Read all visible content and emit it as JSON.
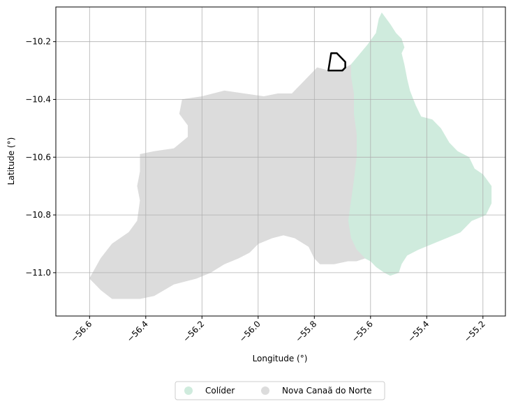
{
  "chart_data": {
    "type": "map",
    "xlabel": "Longitude (°)",
    "ylabel": "Latitude (°)",
    "xlim": [
      -56.72,
      -55.12
    ],
    "ylim": [
      -11.15,
      -10.08
    ],
    "xticks": [
      -56.6,
      -56.4,
      -56.2,
      -56.0,
      -55.8,
      -55.6,
      -55.4,
      -55.2
    ],
    "xtick_labels": [
      "−56.6",
      "−56.4",
      "−56.2",
      "−56.0",
      "−55.8",
      "−55.6",
      "−55.4",
      "−55.2"
    ],
    "yticks": [
      -10.2,
      -10.4,
      -10.6,
      -10.8,
      -11.0
    ],
    "ytick_labels": [
      "−10.2",
      "−10.4",
      "−10.6",
      "−10.8",
      "−11.0"
    ],
    "grid": true,
    "legend_position": "bottom-center",
    "regions": [
      {
        "name": "Colíder",
        "color": "#cfebdd",
        "outline": [
          [
            -55.67,
            -10.28
          ],
          [
            -55.61,
            -10.21
          ],
          [
            -55.58,
            -10.17
          ],
          [
            -55.57,
            -10.12
          ],
          [
            -55.56,
            -10.1
          ],
          [
            -55.53,
            -10.14
          ],
          [
            -55.51,
            -10.17
          ],
          [
            -55.49,
            -10.19
          ],
          [
            -55.48,
            -10.22
          ],
          [
            -55.49,
            -10.24
          ],
          [
            -55.48,
            -10.28
          ],
          [
            -55.47,
            -10.33
          ],
          [
            -55.46,
            -10.37
          ],
          [
            -55.44,
            -10.42
          ],
          [
            -55.42,
            -10.46
          ],
          [
            -55.38,
            -10.47
          ],
          [
            -55.35,
            -10.5
          ],
          [
            -55.32,
            -10.55
          ],
          [
            -55.29,
            -10.58
          ],
          [
            -55.25,
            -10.6
          ],
          [
            -55.23,
            -10.64
          ],
          [
            -55.2,
            -10.66
          ],
          [
            -55.17,
            -10.7
          ],
          [
            -55.17,
            -10.76
          ],
          [
            -55.19,
            -10.8
          ],
          [
            -55.24,
            -10.82
          ],
          [
            -55.28,
            -10.86
          ],
          [
            -55.33,
            -10.88
          ],
          [
            -55.38,
            -10.9
          ],
          [
            -55.43,
            -10.92
          ],
          [
            -55.47,
            -10.94
          ],
          [
            -55.49,
            -10.97
          ],
          [
            -55.5,
            -11.0
          ],
          [
            -55.53,
            -11.01
          ],
          [
            -55.55,
            -11.0
          ],
          [
            -55.58,
            -10.98
          ],
          [
            -55.6,
            -10.96
          ],
          [
            -55.62,
            -10.95
          ],
          [
            -55.65,
            -10.92
          ],
          [
            -55.67,
            -10.88
          ],
          [
            -55.68,
            -10.82
          ],
          [
            -55.67,
            -10.75
          ],
          [
            -55.66,
            -10.68
          ],
          [
            -55.65,
            -10.6
          ],
          [
            -55.65,
            -10.52
          ],
          [
            -55.66,
            -10.45
          ],
          [
            -55.66,
            -10.38
          ],
          [
            -55.67,
            -10.32
          ]
        ]
      },
      {
        "name": "Nova Canaã do Norte",
        "color": "#dcdcdc",
        "outline": [
          [
            -55.67,
            -10.28
          ],
          [
            -55.71,
            -10.3
          ],
          [
            -55.75,
            -10.3
          ],
          [
            -55.79,
            -10.29
          ],
          [
            -55.82,
            -10.32
          ],
          [
            -55.85,
            -10.35
          ],
          [
            -55.88,
            -10.38
          ],
          [
            -55.93,
            -10.38
          ],
          [
            -55.98,
            -10.39
          ],
          [
            -56.05,
            -10.38
          ],
          [
            -56.12,
            -10.37
          ],
          [
            -56.2,
            -10.39
          ],
          [
            -56.27,
            -10.4
          ],
          [
            -56.28,
            -10.45
          ],
          [
            -56.25,
            -10.49
          ],
          [
            -56.25,
            -10.53
          ],
          [
            -56.3,
            -10.57
          ],
          [
            -56.37,
            -10.58
          ],
          [
            -56.42,
            -10.59
          ],
          [
            -56.42,
            -10.65
          ],
          [
            -56.43,
            -10.7
          ],
          [
            -56.42,
            -10.75
          ],
          [
            -56.43,
            -10.82
          ],
          [
            -56.46,
            -10.86
          ],
          [
            -56.52,
            -10.9
          ],
          [
            -56.56,
            -10.95
          ],
          [
            -56.6,
            -11.02
          ],
          [
            -56.56,
            -11.06
          ],
          [
            -56.52,
            -11.09
          ],
          [
            -56.48,
            -11.09
          ],
          [
            -56.42,
            -11.09
          ],
          [
            -56.37,
            -11.08
          ],
          [
            -56.3,
            -11.04
          ],
          [
            -56.22,
            -11.02
          ],
          [
            -56.17,
            -11.0
          ],
          [
            -56.12,
            -10.97
          ],
          [
            -56.07,
            -10.95
          ],
          [
            -56.03,
            -10.93
          ],
          [
            -56.0,
            -10.9
          ],
          [
            -55.95,
            -10.88
          ],
          [
            -55.91,
            -10.87
          ],
          [
            -55.87,
            -10.88
          ],
          [
            -55.82,
            -10.91
          ],
          [
            -55.8,
            -10.95
          ],
          [
            -55.78,
            -10.97
          ],
          [
            -55.73,
            -10.97
          ],
          [
            -55.68,
            -10.96
          ],
          [
            -55.65,
            -10.96
          ],
          [
            -55.62,
            -10.95
          ],
          [
            -55.65,
            -10.92
          ],
          [
            -55.67,
            -10.88
          ],
          [
            -55.68,
            -10.82
          ],
          [
            -55.67,
            -10.75
          ],
          [
            -55.66,
            -10.68
          ],
          [
            -55.65,
            -10.6
          ],
          [
            -55.65,
            -10.52
          ],
          [
            -55.66,
            -10.45
          ],
          [
            -55.66,
            -10.38
          ],
          [
            -55.67,
            -10.32
          ]
        ]
      }
    ],
    "highlight": {
      "outline": [
        [
          -55.75,
          -10.3
        ],
        [
          -55.74,
          -10.24
        ],
        [
          -55.72,
          -10.24
        ],
        [
          -55.7,
          -10.26
        ],
        [
          -55.69,
          -10.27
        ],
        [
          -55.69,
          -10.29
        ],
        [
          -55.7,
          -10.3
        ]
      ],
      "color": "#000000"
    }
  }
}
